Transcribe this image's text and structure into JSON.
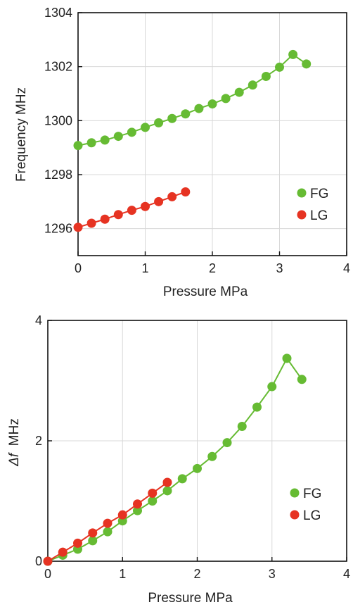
{
  "chart_data": [
    {
      "type": "scatter",
      "xlabel": "Pressure  MPa",
      "ylabel": "Frequency  MHz",
      "xlim": [
        0,
        4
      ],
      "ylim": [
        1295,
        1304
      ],
      "xticks": [
        "0",
        "1",
        "2",
        "3",
        "4"
      ],
      "yticks": [
        "1296",
        "1298",
        "1300",
        "1302",
        "1304"
      ],
      "ytick_values": [
        1296,
        1298,
        1300,
        1302,
        1304
      ],
      "grid": true,
      "legend": "bottom-right",
      "series": [
        {
          "name": "FG",
          "color": "#66bb33",
          "x": [
            0,
            0.2,
            0.4,
            0.6,
            0.8,
            1.0,
            1.2,
            1.4,
            1.6,
            1.8,
            2.0,
            2.2,
            2.4,
            2.6,
            2.8,
            3.0,
            3.2,
            3.4
          ],
          "y": [
            1299.08,
            1299.18,
            1299.28,
            1299.42,
            1299.57,
            1299.75,
            1299.92,
            1300.08,
            1300.25,
            1300.45,
            1300.62,
            1300.82,
            1301.05,
            1301.32,
            1301.64,
            1301.98,
            1302.45,
            1302.1
          ]
        },
        {
          "name": "LG",
          "color": "#e63322",
          "x": [
            0,
            0.2,
            0.4,
            0.6,
            0.8,
            1.0,
            1.2,
            1.4,
            1.6
          ],
          "y": [
            1296.05,
            1296.2,
            1296.35,
            1296.52,
            1296.68,
            1296.82,
            1297.0,
            1297.18,
            1297.36
          ]
        }
      ]
    },
    {
      "type": "scatter",
      "xlabel": "Pressure  MPa",
      "ylabel_symbol": "Δf",
      "ylabel_unit": "MHz",
      "xlim": [
        0,
        4
      ],
      "ylim": [
        0,
        4
      ],
      "xticks": [
        "0",
        "1",
        "2",
        "3",
        "4"
      ],
      "yticks": [
        "0",
        "2",
        "4"
      ],
      "ytick_values": [
        0,
        2,
        4
      ],
      "grid": true,
      "legend": "bottom-right",
      "series": [
        {
          "name": "FG",
          "color": "#66bb33",
          "x": [
            0,
            0.2,
            0.4,
            0.6,
            0.8,
            1.0,
            1.2,
            1.4,
            1.6,
            1.8,
            2.0,
            2.2,
            2.4,
            2.6,
            2.8,
            3.0,
            3.2,
            3.4
          ],
          "y": [
            0,
            0.1,
            0.2,
            0.34,
            0.49,
            0.67,
            0.84,
            1.0,
            1.17,
            1.37,
            1.54,
            1.74,
            1.97,
            2.24,
            2.56,
            2.9,
            3.37,
            3.02
          ]
        },
        {
          "name": "LG",
          "color": "#e63322",
          "x": [
            0,
            0.2,
            0.4,
            0.6,
            0.8,
            1.0,
            1.2,
            1.4,
            1.6
          ],
          "y": [
            0,
            0.15,
            0.3,
            0.47,
            0.63,
            0.77,
            0.95,
            1.13,
            1.31
          ]
        }
      ]
    }
  ]
}
